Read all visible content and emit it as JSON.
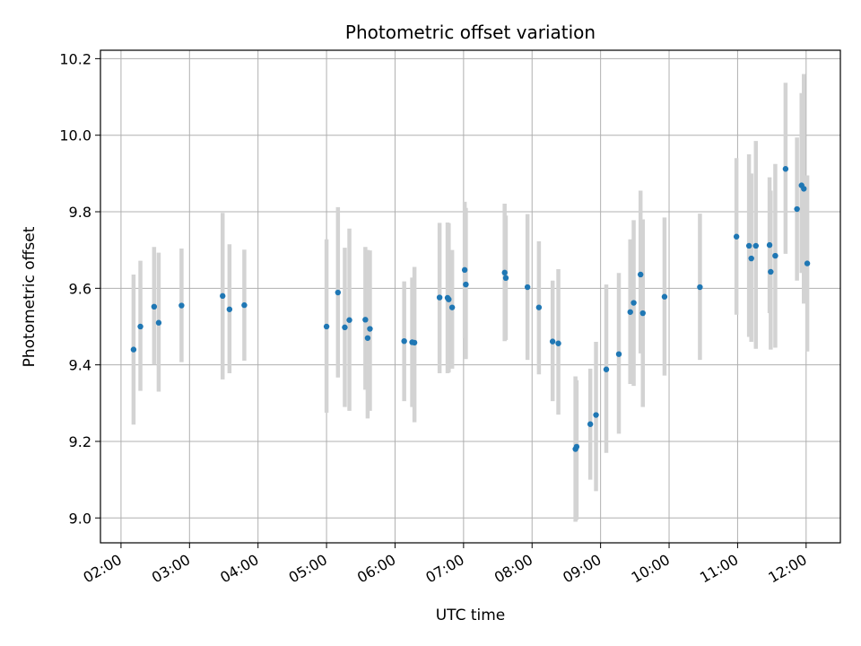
{
  "chart_data": {
    "type": "scatter",
    "title": "Photometric offset variation",
    "xlabel": "UTC time",
    "ylabel": "Photometric offset",
    "x_ticks": [
      "02:00",
      "03:00",
      "04:00",
      "05:00",
      "06:00",
      "07:00",
      "08:00",
      "09:00",
      "10:00",
      "11:00",
      "12:00"
    ],
    "y_ticks": [
      9.0,
      9.2,
      9.4,
      9.6,
      9.8,
      10.0,
      10.2
    ],
    "xlim": [
      "01:42",
      "12:30"
    ],
    "ylim": [
      8.935,
      10.222
    ],
    "grid": true,
    "marker_color": "#1f77b4",
    "errorbar_color": "#d3d3d3",
    "series": [
      {
        "x": [
          "02:11",
          "02:17",
          "02:29",
          "02:33",
          "02:53",
          "03:29",
          "03:35",
          "03:48",
          "05:00",
          "05:10",
          "05:16",
          "05:20",
          "05:34",
          "05:36",
          "05:38",
          "06:08",
          "06:15",
          "06:17",
          "06:39",
          "06:46",
          "06:47",
          "06:50",
          "07:01",
          "07:02",
          "07:36",
          "07:37",
          "07:56",
          "08:06",
          "08:18",
          "08:23",
          "08:38",
          "08:39",
          "08:51",
          "08:56",
          "09:05",
          "09:16",
          "09:26",
          "09:29",
          "09:35",
          "09:37",
          "09:56",
          "10:27",
          "10:59",
          "11:10",
          "11:12",
          "11:16",
          "11:28",
          "11:29",
          "11:33",
          "11:42",
          "11:52",
          "11:56",
          "11:58",
          "12:01"
        ],
        "y": [
          9.44,
          9.5,
          9.552,
          9.51,
          9.555,
          9.58,
          9.545,
          9.556,
          9.5,
          9.589,
          9.498,
          9.517,
          9.518,
          9.47,
          9.494,
          9.462,
          9.459,
          9.458,
          9.576,
          9.575,
          9.571,
          9.55,
          9.648,
          9.61,
          9.641,
          9.627,
          9.603,
          9.55,
          9.461,
          9.456,
          9.18,
          9.186,
          9.245,
          9.269,
          9.388,
          9.428,
          9.538,
          9.562,
          9.636,
          9.535,
          9.578,
          9.603,
          9.735,
          9.711,
          9.678,
          9.711,
          9.713,
          9.643,
          9.685,
          9.912,
          9.807,
          9.869,
          9.86,
          9.665
        ],
        "y_err_low": [
          9.244,
          9.332,
          9.4,
          9.33,
          9.407,
          9.362,
          9.378,
          9.411,
          9.275,
          9.367,
          9.29,
          9.28,
          9.335,
          9.26,
          9.28,
          9.305,
          9.29,
          9.25,
          9.378,
          9.378,
          9.38,
          9.39,
          9.47,
          9.415,
          9.462,
          9.465,
          9.413,
          9.375,
          9.305,
          9.27,
          8.99,
          8.995,
          9.1,
          9.07,
          9.17,
          9.22,
          9.35,
          9.345,
          9.43,
          9.29,
          9.372,
          9.413,
          9.531,
          9.473,
          9.46,
          9.442,
          9.535,
          9.44,
          9.445,
          9.69,
          9.62,
          9.64,
          9.56,
          9.435
        ],
        "y_err_high": [
          9.636,
          9.672,
          9.708,
          9.693,
          9.704,
          9.797,
          9.715,
          9.701,
          9.728,
          9.812,
          9.706,
          9.756,
          9.708,
          9.7,
          9.699,
          9.618,
          9.628,
          9.656,
          9.771,
          9.772,
          9.77,
          9.7,
          9.826,
          9.81,
          9.821,
          9.79,
          9.794,
          9.723,
          9.62,
          9.65,
          9.37,
          9.36,
          9.39,
          9.46,
          9.61,
          9.64,
          9.728,
          9.778,
          9.855,
          9.78,
          9.785,
          9.795,
          9.94,
          9.95,
          9.9,
          9.985,
          9.89,
          9.855,
          9.925,
          10.137,
          9.994,
          10.11,
          10.16,
          9.895
        ]
      }
    ]
  }
}
